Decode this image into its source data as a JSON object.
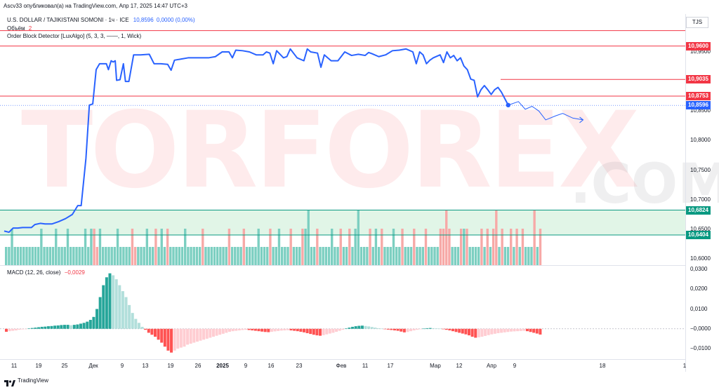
{
  "header": {
    "published": "Ascv33 опубликовал(а) на TradingView.com, Апр 17, 2025 14:47 UTC+3",
    "symbol": "U.S. DOLLAR / TAJIKISTANI SOMONI · 1ч · ICE",
    "price": "10,8596",
    "change": "0,0000 (0,00%)",
    "volume_label": "Объём",
    "volume_value": "2",
    "indicator": "Order Block Detector [LuxAlgo] (5, 3, 3, ——, 1, Wick)",
    "currency": "TJS"
  },
  "macd": {
    "label": "MACD (12, 26, close)",
    "value": "−0,0029"
  },
  "watermark": {
    "left": "TORFOREX",
    "right": ".COM"
  },
  "brand": "TradingView",
  "colors": {
    "line": "#2962ff",
    "resistance": "#f23645",
    "support": "#089981",
    "support_zone": "#daf2e1",
    "vol_up": "#7ccfc1",
    "vol_down": "#f7a9a7",
    "macd_up_strong": "#26a69a",
    "macd_up_weak": "#b2dfdb",
    "macd_down_strong": "#ff5252",
    "macd_down_weak": "#ffcdd2"
  },
  "chart_data": {
    "type": "line",
    "price_axis_ticks": [
      "10,9500",
      "10,9000",
      "10,8500",
      "10,8000",
      "10,7500",
      "10,7000",
      "10,6500",
      "10,6000"
    ],
    "macd_axis_ticks": [
      "0,0300",
      "0,0200",
      "0,0100",
      "−0,0000",
      "−0,0100"
    ],
    "x_ticks": [
      "11",
      "19",
      "25",
      "Дек",
      "9",
      "13",
      "19",
      "26",
      "2025",
      "9",
      "16",
      "23",
      "Фев",
      "11",
      "17",
      "Мар",
      "12",
      "Апр",
      "9",
      "18",
      "1"
    ],
    "levels": [
      {
        "label": "10,9600",
        "value": 10.96,
        "color": "#f23645"
      },
      {
        "label": "10,9035",
        "value": 10.9035,
        "color": "#f23645"
      },
      {
        "label": "10,8753",
        "value": 10.8753,
        "color": "#f23645"
      },
      {
        "label": "10,8596",
        "value": 10.8596,
        "color": "#2962ff"
      },
      {
        "label": "10,6824",
        "value": 10.6824,
        "color": "#089981"
      },
      {
        "label": "10,6404",
        "value": 10.6404,
        "color": "#089981"
      }
    ],
    "top_line_value": 10.986,
    "support_zone": [
      10.6404,
      10.6824
    ],
    "price_series": [
      [
        0,
        10.647
      ],
      [
        0.007,
        10.645
      ],
      [
        0.013,
        10.652
      ],
      [
        0.02,
        10.652
      ],
      [
        0.027,
        10.653
      ],
      [
        0.04,
        10.653
      ],
      [
        0.045,
        10.658
      ],
      [
        0.053,
        10.66
      ],
      [
        0.06,
        10.659
      ],
      [
        0.07,
        10.659
      ],
      [
        0.08,
        10.663
      ],
      [
        0.09,
        10.668
      ],
      [
        0.1,
        10.675
      ],
      [
        0.108,
        10.69
      ],
      [
        0.113,
        10.69
      ],
      [
        0.12,
        10.77
      ],
      [
        0.125,
        10.86
      ],
      [
        0.13,
        10.862
      ],
      [
        0.135,
        10.92
      ],
      [
        0.14,
        10.93
      ],
      [
        0.15,
        10.93
      ],
      [
        0.153,
        10.92
      ],
      [
        0.157,
        10.935
      ],
      [
        0.16,
        10.933
      ],
      [
        0.163,
        10.935
      ],
      [
        0.165,
        10.902
      ],
      [
        0.17,
        10.903
      ],
      [
        0.175,
        10.93
      ],
      [
        0.178,
        10.9
      ],
      [
        0.183,
        10.9
      ],
      [
        0.19,
        10.945
      ],
      [
        0.2,
        10.945
      ],
      [
        0.213,
        10.946
      ],
      [
        0.22,
        10.93
      ],
      [
        0.23,
        10.93
      ],
      [
        0.24,
        10.929
      ],
      [
        0.245,
        10.919
      ],
      [
        0.25,
        10.936
      ],
      [
        0.26,
        10.938
      ],
      [
        0.27,
        10.94
      ],
      [
        0.29,
        10.94
      ],
      [
        0.3,
        10.94
      ],
      [
        0.31,
        10.942
      ],
      [
        0.32,
        10.95
      ],
      [
        0.33,
        10.95
      ],
      [
        0.335,
        10.94
      ],
      [
        0.34,
        10.953
      ],
      [
        0.35,
        10.952
      ],
      [
        0.36,
        10.95
      ],
      [
        0.37,
        10.945
      ],
      [
        0.38,
        10.945
      ],
      [
        0.385,
        10.95
      ],
      [
        0.39,
        10.948
      ],
      [
        0.395,
        10.93
      ],
      [
        0.4,
        10.952
      ],
      [
        0.41,
        10.94
      ],
      [
        0.415,
        10.942
      ],
      [
        0.42,
        10.955
      ],
      [
        0.43,
        10.94
      ],
      [
        0.44,
        10.935
      ],
      [
        0.445,
        10.955
      ],
      [
        0.45,
        10.95
      ],
      [
        0.46,
        10.948
      ],
      [
        0.465,
        10.924
      ],
      [
        0.47,
        10.945
      ],
      [
        0.48,
        10.935
      ],
      [
        0.49,
        10.935
      ],
      [
        0.5,
        10.95
      ],
      [
        0.51,
        10.944
      ],
      [
        0.52,
        10.946
      ],
      [
        0.53,
        10.944
      ],
      [
        0.535,
        10.949
      ],
      [
        0.54,
        10.947
      ],
      [
        0.55,
        10.942
      ],
      [
        0.56,
        10.945
      ],
      [
        0.57,
        10.952
      ],
      [
        0.58,
        10.953
      ],
      [
        0.59,
        10.955
      ],
      [
        0.6,
        10.95
      ],
      [
        0.605,
        10.93
      ],
      [
        0.61,
        10.95
      ],
      [
        0.615,
        10.945
      ],
      [
        0.62,
        10.93
      ],
      [
        0.625,
        10.936
      ],
      [
        0.63,
        10.94
      ],
      [
        0.64,
        10.945
      ],
      [
        0.645,
        10.932
      ],
      [
        0.65,
        10.95
      ],
      [
        0.655,
        10.94
      ],
      [
        0.66,
        10.944
      ],
      [
        0.665,
        10.935
      ],
      [
        0.67,
        10.94
      ],
      [
        0.675,
        10.926
      ],
      [
        0.68,
        10.92
      ],
      [
        0.685,
        10.904
      ],
      [
        0.69,
        10.902
      ],
      [
        0.695,
        10.874
      ],
      [
        0.7,
        10.886
      ],
      [
        0.705,
        10.893
      ],
      [
        0.71,
        10.886
      ],
      [
        0.715,
        10.878
      ],
      [
        0.72,
        10.886
      ],
      [
        0.725,
        10.89
      ],
      [
        0.73,
        10.882
      ],
      [
        0.74,
        10.86
      ]
    ],
    "forecast_series": [
      [
        0.74,
        10.86
      ],
      [
        0.755,
        10.866
      ],
      [
        0.765,
        10.853
      ],
      [
        0.775,
        10.858
      ],
      [
        0.785,
        10.85
      ],
      [
        0.795,
        10.835
      ],
      [
        0.81,
        10.842
      ],
      [
        0.82,
        10.846
      ],
      [
        0.835,
        10.838
      ],
      [
        0.85,
        10.835
      ]
    ],
    "volume_bars": [
      {
        "v": 1,
        "up": true
      },
      {
        "v": 1,
        "up": true
      },
      {
        "v": 2,
        "up": true
      },
      {
        "v": 1,
        "up": true
      },
      {
        "v": 1,
        "up": true
      },
      {
        "v": 1,
        "up": true
      },
      {
        "v": 1,
        "up": true
      },
      {
        "v": 1,
        "up": true
      },
      {
        "v": 1,
        "up": true
      },
      {
        "v": 1,
        "up": true
      },
      {
        "v": 1,
        "up": true
      },
      {
        "v": 1,
        "up": true
      },
      {
        "v": 2,
        "up": true
      },
      {
        "v": 1,
        "up": true
      },
      {
        "v": 1,
        "up": true
      },
      {
        "v": 1,
        "up": true
      },
      {
        "v": 1,
        "up": true
      },
      {
        "v": 2,
        "up": true
      },
      {
        "v": 1,
        "up": true
      },
      {
        "v": 1,
        "up": true
      },
      {
        "v": 1,
        "up": true
      },
      {
        "v": 2,
        "up": true
      },
      {
        "v": 1,
        "up": true
      },
      {
        "v": 1,
        "up": true
      },
      {
        "v": 1,
        "up": true
      },
      {
        "v": 1,
        "up": true
      },
      {
        "v": 1,
        "up": true
      },
      {
        "v": 2,
        "up": true
      },
      {
        "v": 1,
        "up": true
      },
      {
        "v": 2,
        "up": true
      },
      {
        "v": 2,
        "up": false
      },
      {
        "v": 1,
        "up": false
      },
      {
        "v": 2,
        "up": true
      },
      {
        "v": 1,
        "up": true
      },
      {
        "v": 1,
        "up": true
      },
      {
        "v": 1,
        "up": true
      },
      {
        "v": 1,
        "up": true
      },
      {
        "v": 1,
        "up": true
      },
      {
        "v": 2,
        "up": true
      },
      {
        "v": 1,
        "up": true
      },
      {
        "v": 1,
        "up": true
      },
      {
        "v": 1,
        "up": true
      },
      {
        "v": 1,
        "up": true
      },
      {
        "v": 2,
        "up": false
      },
      {
        "v": 1,
        "up": false
      },
      {
        "v": 1,
        "up": true
      },
      {
        "v": 1,
        "up": true
      },
      {
        "v": 1,
        "up": true
      },
      {
        "v": 2,
        "up": true
      },
      {
        "v": 1,
        "up": true
      },
      {
        "v": 1,
        "up": true
      },
      {
        "v": 2,
        "up": false
      },
      {
        "v": 1,
        "up": true
      },
      {
        "v": 2,
        "up": true
      },
      {
        "v": 1,
        "up": true
      },
      {
        "v": 2,
        "up": false
      },
      {
        "v": 1,
        "up": true
      },
      {
        "v": 1,
        "up": true
      },
      {
        "v": 1,
        "up": true
      },
      {
        "v": 1,
        "up": true
      },
      {
        "v": 1,
        "up": true
      },
      {
        "v": 2,
        "up": true
      },
      {
        "v": 1,
        "up": true
      },
      {
        "v": 1,
        "up": true
      },
      {
        "v": 1,
        "up": true
      },
      {
        "v": 1,
        "up": true
      },
      {
        "v": 1,
        "up": true
      },
      {
        "v": 2,
        "up": false
      },
      {
        "v": 1,
        "up": true
      },
      {
        "v": 1,
        "up": true
      },
      {
        "v": 1,
        "up": true
      },
      {
        "v": 1,
        "up": true
      },
      {
        "v": 1,
        "up": true
      },
      {
        "v": 1,
        "up": true
      },
      {
        "v": 1,
        "up": true
      },
      {
        "v": 1,
        "up": true
      },
      {
        "v": 2,
        "up": false
      },
      {
        "v": 1,
        "up": true
      },
      {
        "v": 1,
        "up": true
      },
      {
        "v": 1,
        "up": true
      },
      {
        "v": 1,
        "up": true
      },
      {
        "v": 2,
        "up": false
      },
      {
        "v": 1,
        "up": true
      },
      {
        "v": 1,
        "up": true
      },
      {
        "v": 1,
        "up": true
      },
      {
        "v": 1,
        "up": true
      },
      {
        "v": 2,
        "up": true
      },
      {
        "v": 1,
        "up": true
      },
      {
        "v": 1,
        "up": true
      },
      {
        "v": 1,
        "up": true
      },
      {
        "v": 2,
        "up": false
      },
      {
        "v": 1,
        "up": true
      },
      {
        "v": 1,
        "up": true
      },
      {
        "v": 2,
        "up": true
      },
      {
        "v": 1,
        "up": true
      },
      {
        "v": 1,
        "up": true
      },
      {
        "v": 1,
        "up": true
      },
      {
        "v": 2,
        "up": false
      },
      {
        "v": 1,
        "up": true
      },
      {
        "v": 1,
        "up": true
      },
      {
        "v": 1,
        "up": true
      },
      {
        "v": 2,
        "up": false
      },
      {
        "v": 2,
        "up": true
      },
      {
        "v": 3,
        "up": true
      },
      {
        "v": 1,
        "up": true
      },
      {
        "v": 1,
        "up": true
      },
      {
        "v": 2,
        "up": false
      },
      {
        "v": 1,
        "up": true
      },
      {
        "v": 1,
        "up": true
      },
      {
        "v": 1,
        "up": true
      },
      {
        "v": 1,
        "up": true
      },
      {
        "v": 2,
        "up": true
      },
      {
        "v": 1,
        "up": true
      },
      {
        "v": 1,
        "up": true
      },
      {
        "v": 2,
        "up": false
      },
      {
        "v": 1,
        "up": true
      },
      {
        "v": 1,
        "up": true
      },
      {
        "v": 2,
        "up": false
      },
      {
        "v": 1,
        "up": true
      },
      {
        "v": 2,
        "up": true
      },
      {
        "v": 3,
        "up": true
      },
      {
        "v": 1,
        "up": true
      },
      {
        "v": 1,
        "up": true
      },
      {
        "v": 1,
        "up": true
      },
      {
        "v": 2,
        "up": false
      },
      {
        "v": 1,
        "up": true
      },
      {
        "v": 2,
        "up": true
      },
      {
        "v": 1,
        "up": true
      },
      {
        "v": 2,
        "up": false
      },
      {
        "v": 1,
        "up": true
      },
      {
        "v": 1,
        "up": true
      },
      {
        "v": 1,
        "up": true
      },
      {
        "v": 2,
        "up": true
      },
      {
        "v": 1,
        "up": true
      },
      {
        "v": 1,
        "up": true
      },
      {
        "v": 2,
        "up": false
      },
      {
        "v": 1,
        "up": true
      },
      {
        "v": 1,
        "up": true
      },
      {
        "v": 1,
        "up": true
      },
      {
        "v": 2,
        "up": false
      },
      {
        "v": 1,
        "up": true
      },
      {
        "v": 1,
        "up": true
      },
      {
        "v": 1,
        "up": true
      },
      {
        "v": 2,
        "up": false
      },
      {
        "v": 1,
        "up": true
      },
      {
        "v": 1,
        "up": true
      },
      {
        "v": 1,
        "up": true
      },
      {
        "v": 1,
        "up": true
      },
      {
        "v": 2,
        "up": false
      },
      {
        "v": 2,
        "up": false
      },
      {
        "v": 3,
        "up": false
      },
      {
        "v": 2,
        "up": false
      },
      {
        "v": 1,
        "up": true
      },
      {
        "v": 1,
        "up": true
      },
      {
        "v": 1,
        "up": true
      },
      {
        "v": 2,
        "up": false
      },
      {
        "v": 2,
        "up": true
      },
      {
        "v": 2,
        "up": false
      },
      {
        "v": 1,
        "up": true
      },
      {
        "v": 1,
        "up": true
      },
      {
        "v": 1,
        "up": true
      },
      {
        "v": 1,
        "up": true
      },
      {
        "v": 2,
        "up": false
      },
      {
        "v": 1,
        "up": true
      },
      {
        "v": 2,
        "up": false
      },
      {
        "v": 1,
        "up": true
      },
      {
        "v": 2,
        "up": false
      },
      {
        "v": 3,
        "up": false
      },
      {
        "v": 1,
        "up": true
      },
      {
        "v": 2,
        "up": false
      },
      {
        "v": 1,
        "up": true
      },
      {
        "v": 1,
        "up": true
      },
      {
        "v": 2,
        "up": false
      },
      {
        "v": 1,
        "up": true
      },
      {
        "v": 2,
        "up": false
      },
      {
        "v": 1,
        "up": true
      },
      {
        "v": 2,
        "up": false
      },
      {
        "v": 1,
        "up": true
      },
      {
        "v": 1,
        "up": true
      },
      {
        "v": 1,
        "up": true
      },
      {
        "v": 3,
        "up": false
      },
      {
        "v": 1,
        "up": true
      },
      {
        "v": 2,
        "up": false
      }
    ],
    "macd_hist": [
      -0.0015,
      -0.0012,
      -0.001,
      -0.0008,
      -0.0005,
      -0.0003,
      -0.0002,
      0.0002,
      0.0004,
      0.0006,
      0.0008,
      0.001,
      0.0011,
      0.0013,
      0.0014,
      0.0016,
      0.0017,
      0.0019,
      0.002,
      0.002,
      0.0018,
      0.002,
      0.0022,
      0.0026,
      0.003,
      0.0036,
      0.0045,
      0.006,
      0.01,
      0.016,
      0.022,
      0.026,
      0.028,
      0.027,
      0.025,
      0.022,
      0.019,
      0.016,
      0.012,
      0.008,
      0.005,
      0.003,
      0.001,
      -0.0005,
      -0.002,
      -0.003,
      -0.004,
      -0.0055,
      -0.007,
      -0.009,
      -0.011,
      -0.012,
      -0.011,
      -0.01,
      -0.0095,
      -0.009,
      -0.008,
      -0.0075,
      -0.007,
      -0.0065,
      -0.006,
      -0.0055,
      -0.005,
      -0.0045,
      -0.004,
      -0.0035,
      -0.003,
      -0.0025,
      -0.002,
      -0.0015,
      -0.0012,
      -0.001,
      -0.0008,
      -0.0006,
      -0.0005,
      -0.0006,
      -0.0008,
      -0.001,
      -0.0012,
      -0.0014,
      -0.0016,
      -0.0017,
      -0.0015,
      -0.0013,
      -0.0011,
      -0.0009,
      -0.0008,
      -0.0007,
      -0.0008,
      -0.001,
      -0.0012,
      -0.0015,
      -0.0018,
      -0.0022,
      -0.0026,
      -0.003,
      -0.0033,
      -0.0035,
      -0.0032,
      -0.0028,
      -0.0024,
      -0.002,
      -0.0015,
      -0.001,
      -0.0005,
      0.0002,
      0.0006,
      0.001,
      0.0013,
      0.0015,
      0.0016,
      0.0014,
      0.0012,
      0.0009,
      0.0006,
      0.0003,
      0.0001,
      -0.0002,
      -0.0004,
      -0.0006,
      -0.0008,
      -0.001,
      -0.0014,
      -0.0018,
      -0.0016,
      -0.0012,
      -0.0008,
      -0.0005,
      -0.0002,
      0.0001,
      0.0003,
      0.0004,
      0.0003,
      0.0002,
      0.0001,
      -0.0002,
      -0.0005,
      -0.0008,
      -0.0012,
      -0.0016,
      -0.002,
      -0.0024,
      -0.0028,
      -0.0033,
      -0.004,
      -0.0045,
      -0.0043,
      -0.004,
      -0.0036,
      -0.0032,
      -0.0028,
      -0.0025,
      -0.0022,
      -0.002,
      -0.0018,
      -0.0016,
      -0.0014,
      -0.0013,
      -0.0012,
      -0.0011,
      -0.001,
      -0.0012,
      -0.0016,
      -0.002,
      -0.0024,
      -0.0029
    ]
  }
}
